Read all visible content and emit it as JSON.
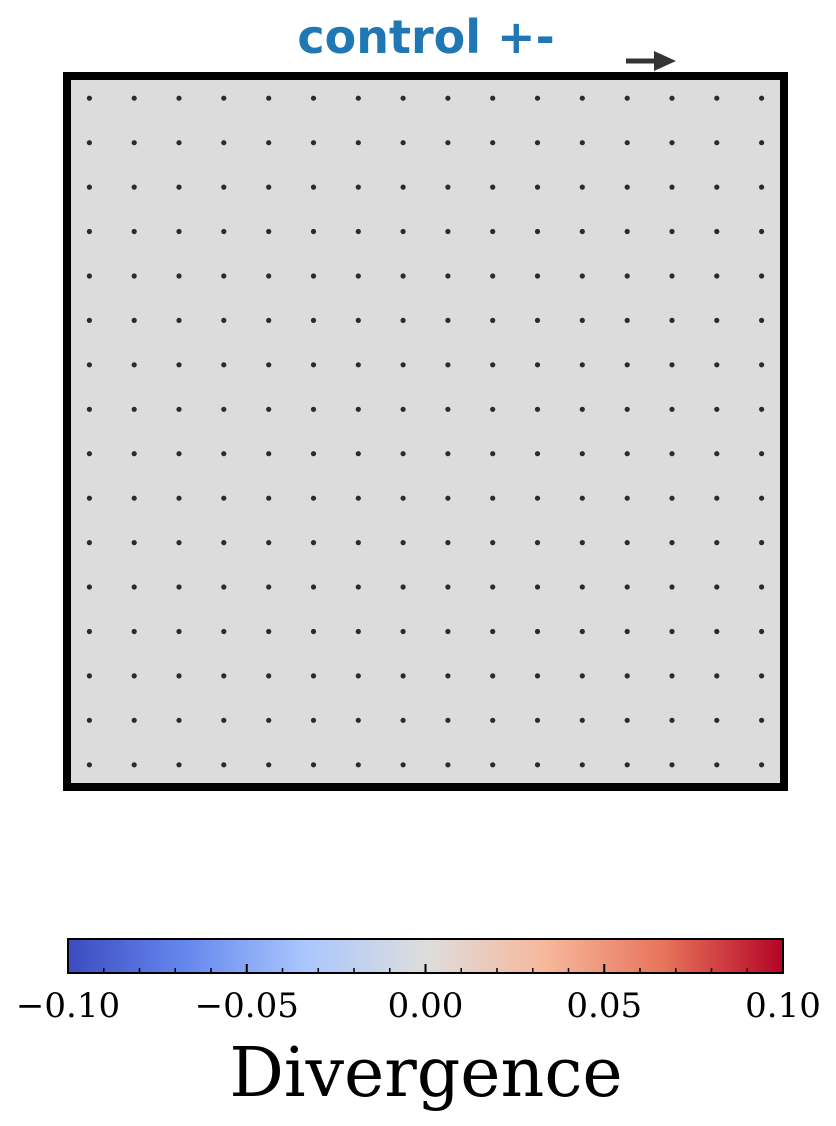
{
  "chart_data": [
    {
      "type": "scatter",
      "subtype": "quiver",
      "title": "control +-",
      "title_color": "#1f77b4",
      "background_color": "#dcdcdc",
      "frame_color": "#000000",
      "point_color": "#2b2b2b",
      "grid": false,
      "x": [
        1,
        2,
        3,
        4,
        5,
        6,
        7,
        8,
        9,
        10,
        11,
        12,
        13,
        14,
        15,
        16
      ],
      "y": [
        1,
        2,
        3,
        4,
        5,
        6,
        7,
        8,
        9,
        10,
        11,
        12,
        13,
        14,
        15,
        16
      ],
      "xlim": [
        0.5,
        16.5
      ],
      "ylim": [
        0.5,
        16.5
      ],
      "arrow_u": 0,
      "arrow_v": 0,
      "key_arrow": {
        "color": "#333333",
        "direction": "right",
        "placement": "top-right"
      }
    },
    {
      "type": "colorbar",
      "label": "Divergence",
      "colormap": "coolwarm",
      "colormap_stops": [
        "#3b4cc0",
        "#6688ee",
        "#aac7fd",
        "#dddddd",
        "#f7b89c",
        "#e7745b",
        "#b40426"
      ],
      "range": [
        -0.1,
        0.1
      ],
      "ticks": [
        -0.1,
        -0.05,
        0.0,
        0.05,
        0.1
      ],
      "tick_labels": [
        "−0.10",
        "−0.05",
        "0.00",
        "0.05",
        "0.10"
      ],
      "minor_ticks": [
        -0.09,
        -0.08,
        -0.07,
        -0.06,
        -0.04,
        -0.03,
        -0.02,
        -0.01,
        0.01,
        0.02,
        0.03,
        0.04,
        0.06,
        0.07,
        0.08,
        0.09
      ]
    }
  ]
}
